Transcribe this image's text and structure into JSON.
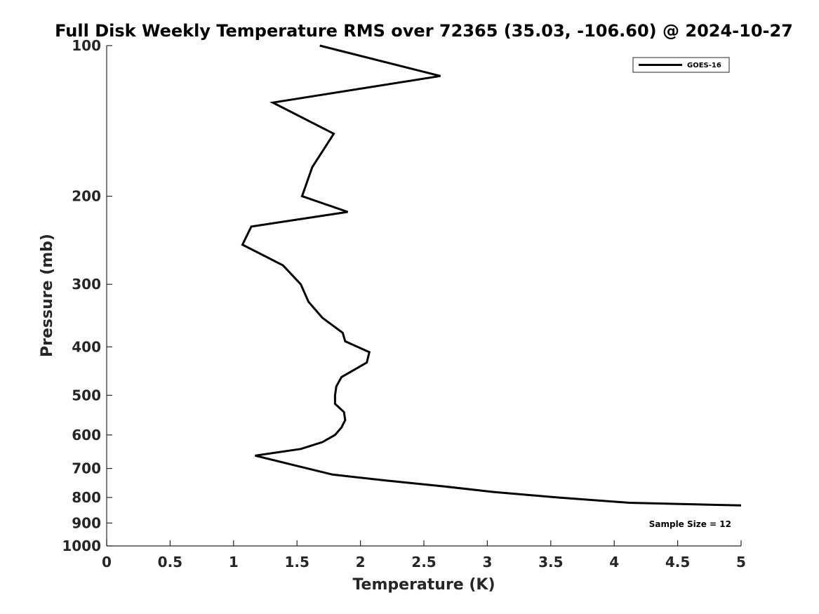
{
  "chart_data": {
    "type": "line",
    "title": "Full Disk Weekly Temperature RMS over 72365 (35.03, -106.60) @ 2024-10-27",
    "xlabel": "Temperature (K)",
    "ylabel": "Pressure (mb)",
    "xlim": [
      0,
      5
    ],
    "ylim": [
      100,
      1000
    ],
    "y_scale": "log",
    "y_reversed": true,
    "x_ticks": [
      "0",
      "0.5",
      "1",
      "1.5",
      "2",
      "2.5",
      "3",
      "3.5",
      "4",
      "4.5",
      "5"
    ],
    "y_ticks": [
      "100",
      "200",
      "300",
      "400",
      "500",
      "600",
      "700",
      "800",
      "900",
      "1000"
    ],
    "grid": false,
    "legend_position": "top-right",
    "annotation": "Sample Size = 12",
    "series": [
      {
        "name": "GOES-16",
        "color": "#000000",
        "x": [
          1.68,
          2.63,
          1.31,
          1.79,
          1.62,
          1.54,
          1.9,
          1.14,
          1.07,
          1.39,
          1.53,
          1.59,
          1.7,
          1.86,
          1.88,
          2.07,
          2.05,
          1.85,
          1.81,
          1.8,
          1.8,
          1.87,
          1.88,
          1.85,
          1.8,
          1.7,
          1.53,
          1.17,
          1.48,
          1.78,
          2.2,
          2.65,
          3.05,
          3.55,
          4.12,
          5.0
        ],
        "y": [
          100,
          115,
          130,
          150,
          175,
          200,
          215,
          230,
          250,
          275,
          300,
          325,
          350,
          375,
          390,
          410,
          430,
          460,
          480,
          500,
          520,
          540,
          560,
          580,
          600,
          620,
          640,
          660,
          690,
          720,
          740,
          760,
          780,
          800,
          820,
          830
        ]
      }
    ]
  }
}
